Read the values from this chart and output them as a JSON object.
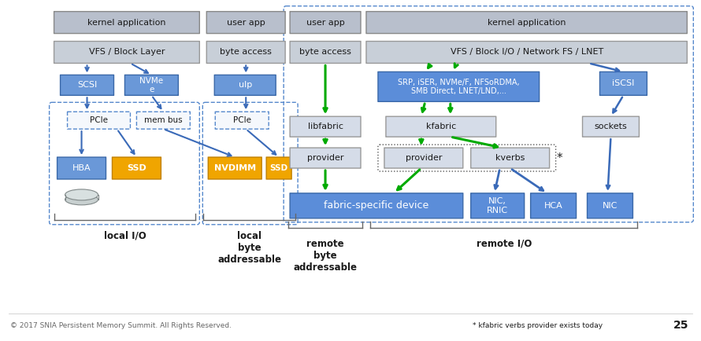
{
  "bg_color": "#ffffff",
  "footer_text": "© 2017 SNIA Persistent Memory Summit. All Rights Reserved.",
  "footer_right": "* kfabric verbs provider exists today",
  "footer_num": "25",
  "colors": {
    "gray_dark": "#a0a8b8",
    "gray_light": "#d0d5de",
    "gray_mid": "#c0c8d5",
    "blue_bright": "#5b8dd9",
    "blue_mid": "#6a98d8",
    "blue_dark": "#3a6ab8",
    "blue_light_box": "#d0dff5",
    "orange": "#f0a500",
    "orange_dark": "#c08000",
    "green": "#00aa00",
    "dashed_blue": "#4488cc",
    "text_dark": "#1a1a1a",
    "text_white": "#ffffff"
  }
}
